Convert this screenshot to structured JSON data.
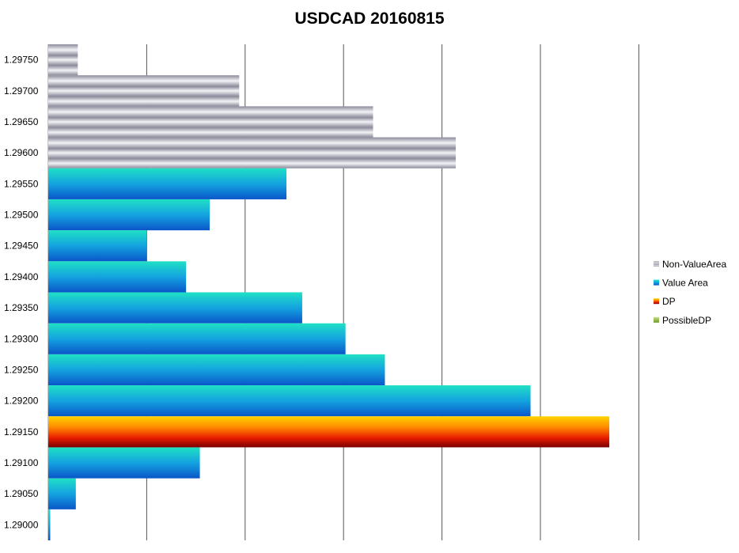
{
  "chart_data": {
    "type": "bar",
    "orientation": "horizontal",
    "title": "USDCAD 20160815",
    "xlabel": "",
    "ylabel": "",
    "grid": true,
    "legend_position": "right",
    "categories": [
      "1.29750",
      "1.29700",
      "1.29650",
      "1.29600",
      "1.29550",
      "1.29500",
      "1.29450",
      "1.29400",
      "1.29350",
      "1.29300",
      "1.29250",
      "1.29200",
      "1.29150",
      "1.29100",
      "1.29050",
      "1.29000"
    ],
    "series": [
      {
        "name": "Non-ValueArea",
        "color": "#9a9aa8",
        "values": [
          0.3,
          1.94,
          3.3,
          4.14,
          null,
          null,
          null,
          null,
          null,
          null,
          null,
          null,
          null,
          null,
          null,
          null
        ]
      },
      {
        "name": "Value Area",
        "color": "#1a86d4",
        "values": [
          null,
          null,
          null,
          null,
          2.42,
          1.64,
          1.0,
          1.4,
          2.58,
          3.02,
          3.42,
          4.9,
          null,
          1.54,
          0.28,
          0.02
        ]
      },
      {
        "name": "DP",
        "color": "#ff5a00",
        "values": [
          null,
          null,
          null,
          null,
          null,
          null,
          null,
          null,
          null,
          null,
          null,
          null,
          5.7,
          null,
          null,
          null
        ]
      },
      {
        "name": "PossibleDP",
        "color": "#8fbf4a",
        "values": [
          null,
          null,
          null,
          null,
          null,
          null,
          null,
          null,
          null,
          null,
          null,
          null,
          null,
          null,
          null,
          null
        ]
      }
    ],
    "xlim": [
      0,
      7
    ]
  }
}
